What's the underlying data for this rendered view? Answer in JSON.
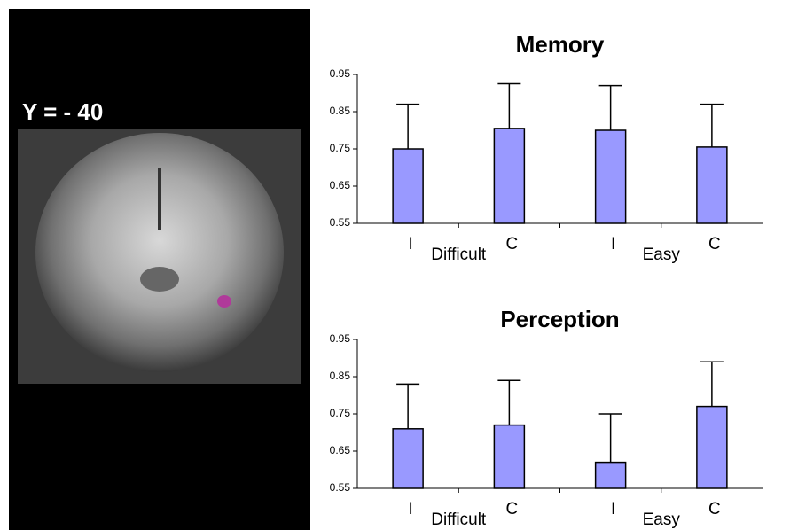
{
  "image": {
    "label": "Y = - 40"
  },
  "chart_data": [
    {
      "type": "bar",
      "title": "Memory",
      "categories": [
        "I",
        "C",
        "I",
        "C"
      ],
      "groups": [
        "Difficult",
        "Easy"
      ],
      "values": [
        0.75,
        0.805,
        0.8,
        0.755
      ],
      "errors": [
        0.12,
        0.12,
        0.12,
        0.115
      ],
      "color": "#9999ff",
      "ylim": [
        0.55,
        0.95
      ],
      "yticks": [
        0.55,
        0.65,
        0.75,
        0.85,
        0.95
      ]
    },
    {
      "type": "bar",
      "title": "Perception",
      "categories": [
        "I",
        "C",
        "I",
        "C"
      ],
      "groups": [
        "Difficult",
        "Easy"
      ],
      "values": [
        0.71,
        0.72,
        0.62,
        0.77
      ],
      "errors": [
        0.12,
        0.12,
        0.13,
        0.12
      ],
      "color": "#9999ff",
      "ylim": [
        0.55,
        0.95
      ],
      "yticks": [
        0.55,
        0.65,
        0.75,
        0.85,
        0.95
      ]
    }
  ]
}
